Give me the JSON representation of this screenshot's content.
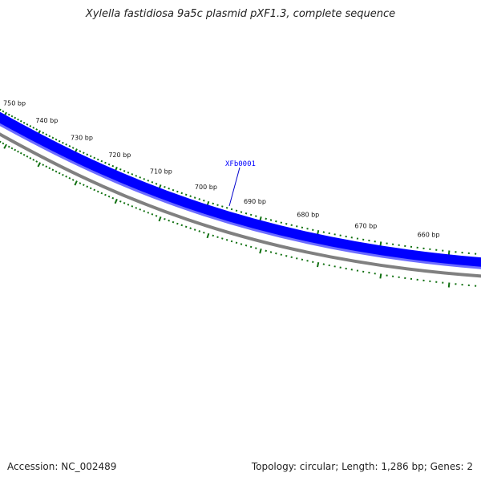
{
  "header": {
    "title": "Xylella fastidiosa 9a5c plasmid pXF1.3, complete sequence"
  },
  "footer": {
    "accession": "Accession: NC_002489",
    "topology": "Topology: circular; Length: 1,286 bp; Genes: 2"
  },
  "map": {
    "sequence_length_bp": 1286,
    "ticks": [
      {
        "label": "750 bp"
      },
      {
        "label": "740 bp"
      },
      {
        "label": "730 bp"
      },
      {
        "label": "720 bp"
      },
      {
        "label": "710 bp"
      },
      {
        "label": "700 bp"
      },
      {
        "label": "690 bp"
      },
      {
        "label": "680 bp"
      },
      {
        "label": "670 bp"
      },
      {
        "label": "660 bp"
      }
    ],
    "genes": [
      {
        "name": "XFb0001",
        "color": "#0000ff"
      }
    ],
    "colors": {
      "gene_track": "#0000ff",
      "gene_track_light": "#6d6dff",
      "backbone": "#808080",
      "ticks": "#107010",
      "label_link": "#0000cc"
    }
  }
}
